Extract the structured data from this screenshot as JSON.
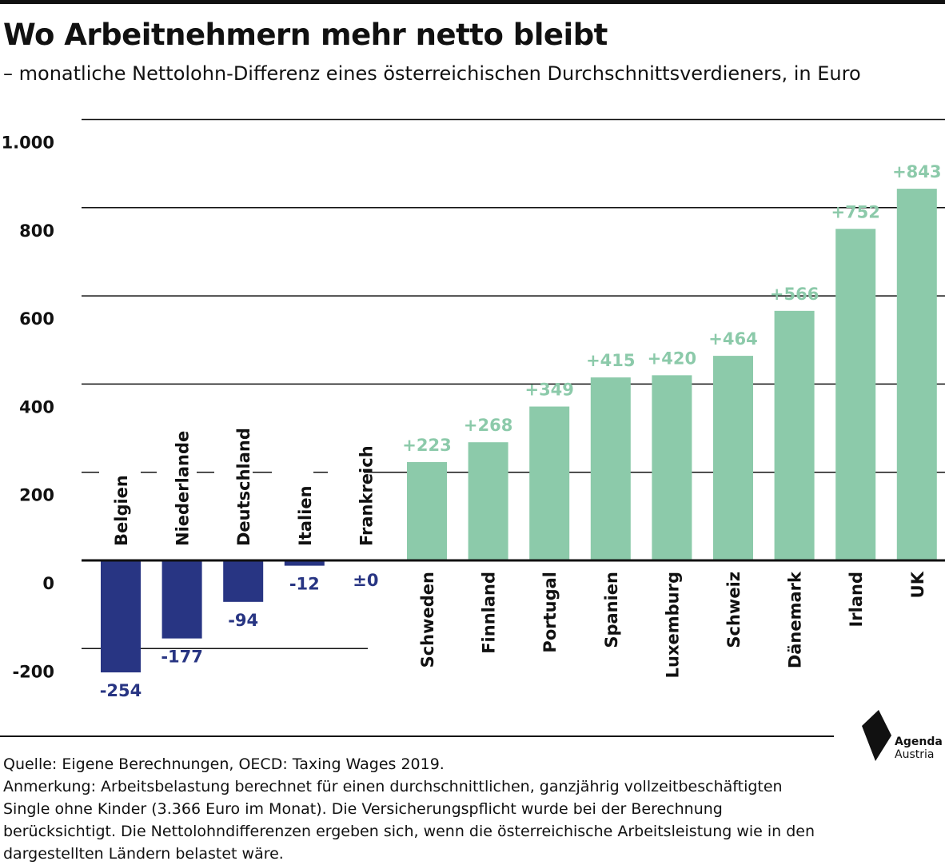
{
  "header": {
    "title": "Wo Arbeitnehmern mehr netto bleibt",
    "subtitle": "– monatliche Nettolohn-Differenz eines österreichischen Durchschnittsverdieners, in Euro"
  },
  "colors": {
    "positive": "#8ccaaa",
    "negative": "#283583",
    "text": "#111111"
  },
  "chart_data": {
    "type": "bar",
    "ylim": [
      -250,
      1000
    ],
    "y_ticks": [
      {
        "value": 1000,
        "label": "1.000"
      },
      {
        "value": 800,
        "label": "800"
      },
      {
        "value": 600,
        "label": "600"
      },
      {
        "value": 400,
        "label": "400"
      },
      {
        "value": 200,
        "label": "200"
      },
      {
        "value": 0,
        "label": "0"
      },
      {
        "value": -200,
        "label": "-200"
      }
    ],
    "grid": true,
    "categories": [
      "Belgien",
      "Niederlande",
      "Deutschland",
      "Italien",
      "Frankreich",
      "Schweden",
      "Finnland",
      "Portugal",
      "Spanien",
      "Luxemburg",
      "Schweiz",
      "Dänemark",
      "Irland",
      "UK"
    ],
    "values": [
      -254,
      -177,
      -94,
      -12,
      0,
      223,
      268,
      349,
      415,
      420,
      464,
      566,
      752,
      843
    ],
    "value_labels": [
      "-254",
      "-177",
      "-94",
      "-12",
      "±0",
      "+223",
      "+268",
      "+349",
      "+415",
      "+420",
      "+464",
      "+566",
      "+752",
      "+843"
    ]
  },
  "footer": {
    "source": "Quelle: Eigene Berechnungen, OECD: Taxing Wages 2019.",
    "note": "Anmerkung: Arbeitsbelastung berechnet für einen durchschnittlichen, ganzjährig vollzeitbeschäftigten Single ohne Kinder (3.366 Euro im Monat). Die Versicherungspflicht wurde bei der Berechnung berücksichtigt. Die Nettolohndifferenzen ergeben sich, wenn die österreichische Arbeitsleistung wie in den dargestellten Ländern belastet wäre."
  },
  "logo": {
    "line1": "Agenda",
    "line2": "Austria"
  }
}
